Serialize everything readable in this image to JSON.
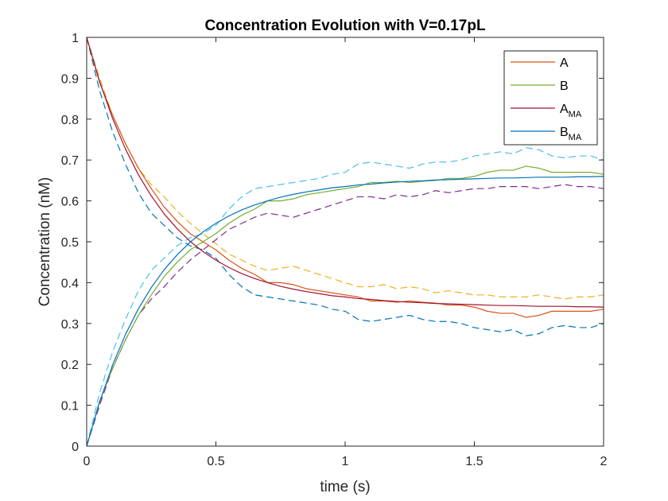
{
  "chart_data": {
    "type": "line",
    "title": "Concentration Evolution with V=0.17pL",
    "xlabel": "time (s)",
    "ylabel": "Concentration (nM)",
    "xlim": [
      0,
      2
    ],
    "ylim": [
      0,
      1
    ],
    "xticks": [
      0,
      0.5,
      1,
      1.5,
      2
    ],
    "xtick_labels": [
      "0",
      "0.5",
      "1",
      "1.5",
      "2"
    ],
    "yticks": [
      0,
      0.1,
      0.2,
      0.3,
      0.4,
      0.5,
      0.6,
      0.7,
      0.8,
      0.9,
      1
    ],
    "ytick_labels": [
      "0",
      "0.1",
      "0.2",
      "0.3",
      "0.4",
      "0.5",
      "0.6",
      "0.7",
      "0.8",
      "0.9",
      "1"
    ],
    "grid": false,
    "legend_position": "top-right",
    "x": [
      0,
      0.05,
      0.1,
      0.15,
      0.2,
      0.25,
      0.3,
      0.35,
      0.4,
      0.45,
      0.5,
      0.55,
      0.6,
      0.65,
      0.7,
      0.75,
      0.8,
      0.85,
      0.9,
      0.95,
      1.0,
      1.05,
      1.1,
      1.15,
      1.2,
      1.25,
      1.3,
      1.35,
      1.4,
      1.45,
      1.5,
      1.55,
      1.6,
      1.65,
      1.7,
      1.75,
      1.8,
      1.85,
      1.9,
      1.95,
      2.0
    ],
    "series": [
      {
        "name": "A",
        "legend": true,
        "color": "#D95319",
        "dash": false,
        "values": [
          1.0,
          0.89,
          0.81,
          0.74,
          0.68,
          0.63,
          0.585,
          0.55,
          0.52,
          0.5,
          0.48,
          0.455,
          0.435,
          0.42,
          0.4,
          0.4,
          0.395,
          0.385,
          0.38,
          0.375,
          0.37,
          0.365,
          0.355,
          0.355,
          0.352,
          0.355,
          0.352,
          0.35,
          0.345,
          0.345,
          0.34,
          0.33,
          0.325,
          0.325,
          0.315,
          0.32,
          0.33,
          0.33,
          0.33,
          0.33,
          0.335
        ]
      },
      {
        "name": "B",
        "legend": true,
        "color": "#77AC30",
        "dash": false,
        "values": [
          0.0,
          0.11,
          0.19,
          0.26,
          0.32,
          0.37,
          0.415,
          0.45,
          0.48,
          0.5,
          0.52,
          0.545,
          0.565,
          0.58,
          0.6,
          0.6,
          0.605,
          0.615,
          0.62,
          0.625,
          0.63,
          0.635,
          0.645,
          0.645,
          0.648,
          0.645,
          0.648,
          0.65,
          0.655,
          0.655,
          0.66,
          0.67,
          0.675,
          0.675,
          0.685,
          0.68,
          0.67,
          0.67,
          0.67,
          0.67,
          0.665
        ]
      },
      {
        "name": "A",
        "name_sub": "MA",
        "legend": true,
        "color": "#A2142F",
        "dash": false,
        "values": [
          1.0,
          0.892,
          0.802,
          0.727,
          0.664,
          0.612,
          0.568,
          0.532,
          0.501,
          0.476,
          0.455,
          0.437,
          0.422,
          0.41,
          0.4,
          0.391,
          0.384,
          0.378,
          0.373,
          0.368,
          0.365,
          0.361,
          0.359,
          0.356,
          0.354,
          0.352,
          0.351,
          0.349,
          0.348,
          0.347,
          0.346,
          0.345,
          0.344,
          0.344,
          0.343,
          0.342,
          0.342,
          0.342,
          0.341,
          0.341,
          0.34
        ]
      },
      {
        "name": "B",
        "name_sub": "MA",
        "legend": true,
        "color": "#0072BD",
        "dash": false,
        "values": [
          0.0,
          0.108,
          0.198,
          0.273,
          0.336,
          0.388,
          0.432,
          0.468,
          0.499,
          0.524,
          0.545,
          0.563,
          0.578,
          0.59,
          0.6,
          0.609,
          0.616,
          0.622,
          0.627,
          0.632,
          0.635,
          0.639,
          0.641,
          0.644,
          0.646,
          0.648,
          0.649,
          0.651,
          0.652,
          0.653,
          0.654,
          0.655,
          0.656,
          0.656,
          0.657,
          0.658,
          0.658,
          0.658,
          0.659,
          0.659,
          0.66
        ]
      },
      {
        "legend": false,
        "color": "#EDB120",
        "dash": true,
        "values": [
          1.0,
          0.9,
          0.81,
          0.74,
          0.68,
          0.64,
          0.61,
          0.575,
          0.545,
          0.52,
          0.495,
          0.47,
          0.455,
          0.44,
          0.43,
          0.435,
          0.44,
          0.43,
          0.42,
          0.41,
          0.4,
          0.39,
          0.39,
          0.395,
          0.385,
          0.39,
          0.385,
          0.375,
          0.38,
          0.375,
          0.37,
          0.37,
          0.365,
          0.365,
          0.365,
          0.37,
          0.365,
          0.36,
          0.365,
          0.365,
          0.37
        ]
      },
      {
        "legend": false,
        "color": "#0072BD",
        "dash": true,
        "values": [
          1.0,
          0.87,
          0.77,
          0.69,
          0.62,
          0.57,
          0.54,
          0.51,
          0.49,
          0.48,
          0.46,
          0.42,
          0.39,
          0.37,
          0.365,
          0.36,
          0.355,
          0.35,
          0.345,
          0.335,
          0.33,
          0.31,
          0.305,
          0.31,
          0.315,
          0.32,
          0.31,
          0.305,
          0.305,
          0.3,
          0.29,
          0.285,
          0.28,
          0.285,
          0.27,
          0.275,
          0.29,
          0.295,
          0.29,
          0.29,
          0.3
        ]
      },
      {
        "legend": false,
        "color": "#4DBEEE",
        "dash": true,
        "values": [
          0.0,
          0.13,
          0.23,
          0.31,
          0.38,
          0.43,
          0.46,
          0.49,
          0.51,
          0.52,
          0.54,
          0.58,
          0.61,
          0.63,
          0.635,
          0.64,
          0.645,
          0.65,
          0.655,
          0.665,
          0.67,
          0.69,
          0.695,
          0.69,
          0.685,
          0.68,
          0.69,
          0.695,
          0.695,
          0.7,
          0.71,
          0.715,
          0.72,
          0.715,
          0.73,
          0.725,
          0.71,
          0.705,
          0.71,
          0.71,
          0.7
        ]
      },
      {
        "legend": false,
        "color": "#7E2F8E",
        "dash": true,
        "values": [
          0.0,
          0.1,
          0.19,
          0.26,
          0.32,
          0.36,
          0.39,
          0.425,
          0.455,
          0.48,
          0.505,
          0.53,
          0.545,
          0.56,
          0.57,
          0.565,
          0.56,
          0.57,
          0.58,
          0.59,
          0.6,
          0.61,
          0.61,
          0.605,
          0.615,
          0.61,
          0.615,
          0.625,
          0.62,
          0.625,
          0.63,
          0.63,
          0.635,
          0.635,
          0.635,
          0.63,
          0.635,
          0.64,
          0.635,
          0.635,
          0.63
        ]
      }
    ]
  }
}
